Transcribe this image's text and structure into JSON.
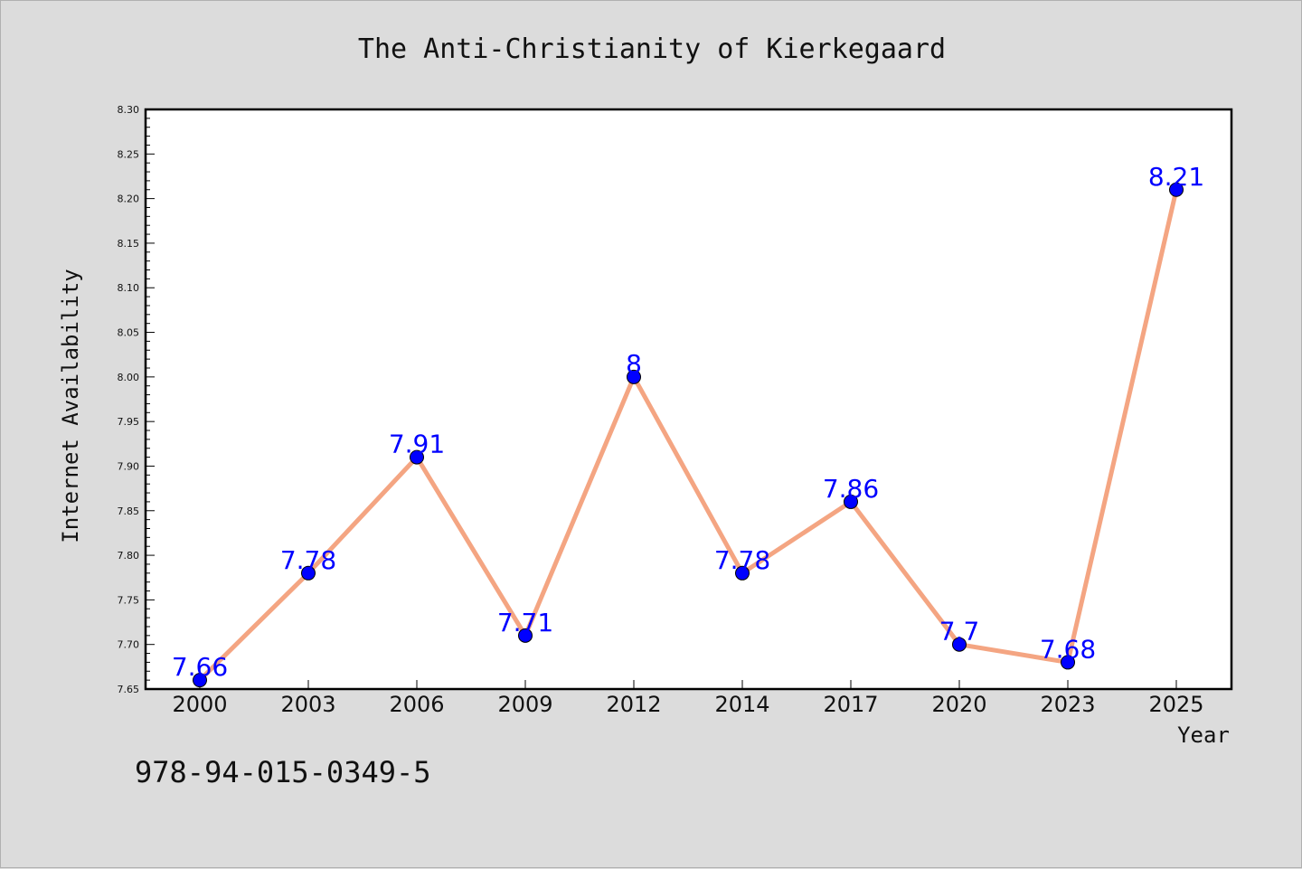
{
  "chart_data": {
    "type": "line",
    "title": "The Anti-Christianity of Kierkegaard",
    "xlabel": "Year",
    "ylabel": "Internet Availability",
    "categories": [
      "2000",
      "2003",
      "2006",
      "2009",
      "2012",
      "2014",
      "2017",
      "2020",
      "2023",
      "2025"
    ],
    "values": [
      7.66,
      7.78,
      7.91,
      7.71,
      8.0,
      7.78,
      7.86,
      7.7,
      7.68,
      8.21
    ],
    "data_labels": [
      "7.66",
      "7.78",
      "7.91",
      "7.71",
      "8",
      "7.78",
      "7.86",
      "7.7",
      "7.68",
      "8.21"
    ],
    "ylim": [
      7.65,
      8.3
    ],
    "yticks": [
      "7.65",
      "7.70",
      "7.75",
      "7.80",
      "7.85",
      "7.90",
      "7.95",
      "8.00",
      "8.05",
      "8.10",
      "8.15",
      "8.20",
      "8.25",
      "8.30"
    ],
    "grid": false,
    "line_color": "#f4a582",
    "marker_color": "#0000ff",
    "label_color": "#0000ff"
  },
  "footer": {
    "isbn": "978-94-015-0349-5"
  }
}
